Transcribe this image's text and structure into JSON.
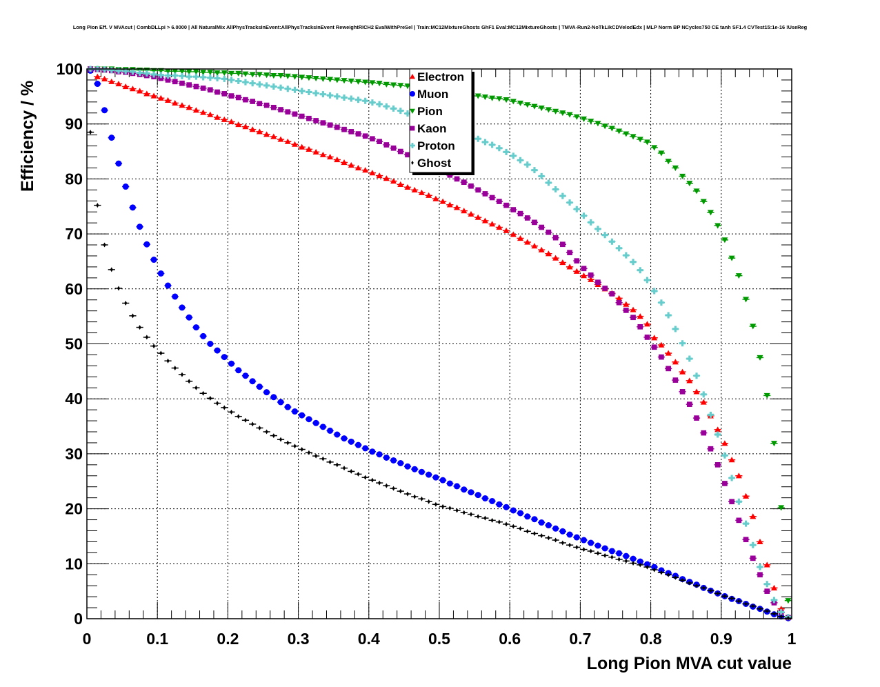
{
  "chart_data": {
    "type": "scatter",
    "title": "Long Pion Eff. V MVAcut | CombDLLpi > 6.0000 | All NaturalMix AllPhysTracksInEvent:AllPhysTracksInEvent ReweightRICH2 EvalWithPreSel | Train:MC12MixtureGhosts GhF1 Eval:MC12MixtureGhosts | TMVA-Run2-NoTkLikCDVelodEdx | MLP Norm BP NCycles750 CE tanh SF1.4 CVTest15:1e-16 !UseReg",
    "xlabel": "Long Pion MVA cut value",
    "ylabel": "Efficiency / %",
    "xlim": [
      0,
      1
    ],
    "ylim": [
      0,
      100
    ],
    "grid": true,
    "legend_position": "top-center",
    "x_start": 0.005,
    "x_step": 0.01,
    "x_bin_width": 0.01,
    "xticks": [
      "0",
      "0.1",
      "0.2",
      "0.3",
      "0.4",
      "0.5",
      "0.6",
      "0.7",
      "0.8",
      "0.9",
      "1"
    ],
    "yticks": [
      "0",
      "10",
      "20",
      "30",
      "40",
      "50",
      "60",
      "70",
      "80",
      "90",
      "100"
    ],
    "series": [
      {
        "name": "Electron",
        "color": "#ff0000",
        "marker": "triangle-up",
        "values": [
          99.7,
          98.6,
          98.2,
          97.7,
          97.3,
          96.8,
          96.4,
          96.0,
          95.5,
          95.1,
          94.7,
          94.3,
          93.8,
          93.4,
          93.0,
          92.5,
          92.1,
          91.7,
          91.2,
          90.8,
          90.4,
          89.9,
          89.5,
          89.0,
          88.6,
          88.1,
          87.7,
          87.2,
          86.8,
          86.3,
          85.8,
          85.4,
          84.9,
          84.4,
          84.0,
          83.5,
          83.0,
          82.5,
          82.0,
          81.6,
          81.1,
          80.6,
          80.1,
          79.6,
          79.0,
          78.5,
          78.0,
          77.5,
          77.0,
          76.4,
          75.9,
          75.3,
          74.8,
          74.2,
          73.6,
          73.0,
          72.4,
          71.8,
          71.2,
          70.6,
          69.9,
          69.2,
          68.5,
          67.8,
          67.1,
          66.4,
          65.6,
          64.8,
          64.0,
          63.2,
          62.4,
          61.7,
          60.8,
          60.0,
          59.2,
          58.3,
          57.2,
          56.2,
          55.0,
          53.6,
          51.1,
          49.8,
          48.3,
          46.7,
          44.9,
          43.3,
          41.3,
          39.4,
          36.9,
          34.4,
          31.9,
          28.9,
          26.0,
          22.3,
          18.6,
          14.0,
          9.8,
          5.6,
          1.8,
          0.3
        ]
      },
      {
        "name": "Muon",
        "color": "#0000ff",
        "marker": "circle",
        "values": [
          99.7,
          97.3,
          92.5,
          87.5,
          82.8,
          78.6,
          74.8,
          71.3,
          68.1,
          65.3,
          62.8,
          60.6,
          58.6,
          56.6,
          54.8,
          53.0,
          51.4,
          50.0,
          48.8,
          47.6,
          46.4,
          45.2,
          44.2,
          43.2,
          42.2,
          41.2,
          40.3,
          39.4,
          38.5,
          37.7,
          37.0,
          36.3,
          35.6,
          34.9,
          34.2,
          33.5,
          32.8,
          32.2,
          31.6,
          31.0,
          30.4,
          29.9,
          29.3,
          28.8,
          28.3,
          27.7,
          27.2,
          26.7,
          26.2,
          25.7,
          25.2,
          24.6,
          24.1,
          23.5,
          23.0,
          22.5,
          21.9,
          21.4,
          20.8,
          20.3,
          19.7,
          19.2,
          18.6,
          18.1,
          17.5,
          17.0,
          16.4,
          15.9,
          15.3,
          14.8,
          14.3,
          13.8,
          13.3,
          12.8,
          12.3,
          11.9,
          11.4,
          10.9,
          10.4,
          9.9,
          9.4,
          8.8,
          8.3,
          7.8,
          7.2,
          6.7,
          6.2,
          5.6,
          5.1,
          4.6,
          4.1,
          3.6,
          3.2,
          2.7,
          2.2,
          1.8,
          1.3,
          0.8,
          0.4,
          0.1
        ]
      },
      {
        "name": "Pion",
        "color": "#009900",
        "marker": "triangle-down",
        "values": [
          100,
          100,
          100,
          100,
          99.9,
          99.9,
          99.9,
          99.8,
          99.8,
          99.7,
          99.7,
          99.6,
          99.6,
          99.6,
          99.5,
          99.5,
          99.4,
          99.4,
          99.3,
          99.3,
          99.2,
          99.2,
          99.1,
          99.0,
          99.0,
          98.9,
          98.8,
          98.8,
          98.7,
          98.6,
          98.5,
          98.4,
          98.3,
          98.2,
          98.1,
          98.0,
          97.9,
          97.8,
          97.7,
          97.6,
          97.5,
          97.4,
          97.2,
          97.1,
          97.0,
          96.9,
          96.7,
          96.6,
          96.4,
          96.3,
          96.1,
          95.9,
          95.7,
          95.5,
          95.3,
          95.1,
          94.9,
          94.7,
          94.6,
          94.4,
          94.1,
          93.8,
          93.5,
          93.2,
          92.9,
          92.6,
          92.3,
          92.0,
          91.7,
          91.3,
          90.9,
          90.5,
          90.1,
          89.6,
          89.2,
          88.7,
          88.2,
          87.7,
          87.2,
          86.7,
          85.7,
          84.7,
          83.2,
          82.0,
          80.5,
          79.2,
          77.8,
          75.9,
          73.9,
          71.5,
          68.9,
          65.6,
          62.4,
          58.1,
          53.2,
          47.5,
          40.6,
          31.9,
          20.2,
          3.3
        ]
      },
      {
        "name": "Kaon",
        "color": "#990099",
        "marker": "square",
        "values": [
          100,
          99.9,
          99.8,
          99.7,
          99.5,
          99.4,
          99.2,
          99.0,
          98.8,
          98.6,
          98.3,
          98.0,
          97.7,
          97.4,
          97.1,
          96.8,
          96.5,
          96.2,
          95.8,
          95.5,
          95.1,
          94.8,
          94.4,
          94.1,
          93.7,
          93.4,
          93.0,
          92.6,
          92.2,
          91.8,
          91.4,
          91.0,
          90.6,
          90.2,
          89.8,
          89.4,
          89.0,
          88.6,
          88.2,
          87.8,
          87.3,
          86.8,
          86.2,
          85.6,
          85.0,
          84.4,
          83.8,
          83.2,
          82.5,
          81.9,
          81.3,
          80.7,
          80.0,
          79.4,
          78.7,
          78.0,
          77.3,
          76.6,
          75.9,
          75.2,
          74.4,
          73.7,
          72.9,
          72.1,
          71.2,
          70.3,
          69.3,
          68.1,
          66.6,
          65.1,
          63.7,
          62.5,
          61.2,
          60.1,
          59.1,
          57.5,
          56.1,
          54.8,
          53.1,
          51.2,
          49.4,
          47.6,
          45.5,
          43.4,
          41.3,
          39.0,
          36.5,
          33.8,
          30.9,
          28.0,
          24.6,
          21.3,
          17.9,
          14.4,
          11.0,
          8.0,
          5.0,
          2.9,
          1.1,
          0.2
        ]
      },
      {
        "name": "Proton",
        "color": "#66cccc",
        "marker": "cross",
        "values": [
          100,
          100,
          99.9,
          99.8,
          99.7,
          99.6,
          99.5,
          99.3,
          99.2,
          99.0,
          98.9,
          98.8,
          98.8,
          98.7,
          98.6,
          98.6,
          98.5,
          98.4,
          98.3,
          98.2,
          98.0,
          97.8,
          97.6,
          97.4,
          97.2,
          97.0,
          96.8,
          96.6,
          96.4,
          96.2,
          96.0,
          95.8,
          95.6,
          95.4,
          95.2,
          95.0,
          94.8,
          94.6,
          94.4,
          94.2,
          93.9,
          93.6,
          93.2,
          92.8,
          92.4,
          91.9,
          91.4,
          90.9,
          90.4,
          90.0,
          89.5,
          89.1,
          88.6,
          88.2,
          87.8,
          87.3,
          86.7,
          86.2,
          85.6,
          84.9,
          84.2,
          83.4,
          82.6,
          81.6,
          80.5,
          79.3,
          78.1,
          76.9,
          75.7,
          74.5,
          73.3,
          72.1,
          70.9,
          69.8,
          68.6,
          67.4,
          66.1,
          64.9,
          63.4,
          61.6,
          59.6,
          57.5,
          55.2,
          52.7,
          50.1,
          47.3,
          44.2,
          40.8,
          37.1,
          33.5,
          29.7,
          25.6,
          21.3,
          17.3,
          13.4,
          9.4,
          6.3,
          3.4,
          1.2,
          0.3
        ]
      },
      {
        "name": "Ghost",
        "color": "#000000",
        "marker": "diamond",
        "values": [
          88.5,
          75.2,
          68.0,
          63.5,
          60.1,
          57.4,
          55.1,
          53.0,
          51.2,
          49.6,
          48.3,
          46.9,
          45.6,
          44.4,
          43.2,
          42.0,
          41.0,
          40.1,
          39.2,
          38.4,
          37.6,
          36.8,
          36.1,
          35.4,
          34.7,
          34.0,
          33.3,
          32.6,
          32.0,
          31.4,
          30.8,
          30.2,
          29.6,
          29.1,
          28.5,
          28.0,
          27.4,
          26.8,
          26.3,
          25.7,
          25.2,
          24.7,
          24.2,
          23.7,
          23.2,
          22.7,
          22.2,
          21.8,
          21.3,
          20.8,
          20.4,
          20.1,
          19.7,
          19.3,
          19.0,
          18.6,
          18.3,
          17.9,
          17.6,
          17.2,
          16.8,
          16.4,
          15.9,
          15.5,
          15.1,
          14.7,
          14.3,
          13.8,
          13.4,
          13.0,
          12.6,
          12.3,
          11.9,
          11.5,
          11.2,
          10.8,
          10.5,
          10.1,
          9.8,
          9.4,
          8.9,
          8.4,
          8.0,
          7.5,
          7.0,
          6.5,
          6.0,
          5.6,
          5.1,
          4.6,
          4.1,
          3.7,
          3.2,
          2.7,
          2.3,
          1.8,
          1.4,
          0.9,
          0.4,
          0.1
        ]
      }
    ]
  }
}
